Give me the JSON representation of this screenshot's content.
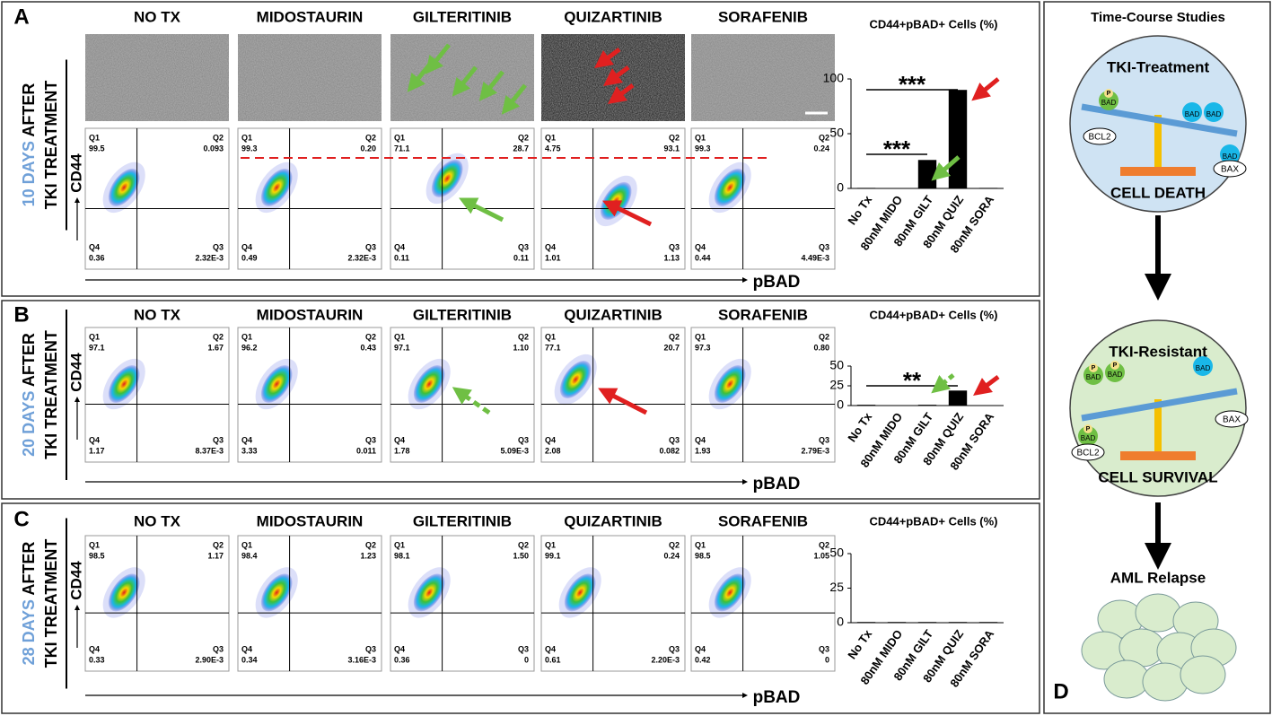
{
  "quadrant_names": [
    "Q1",
    "Q2",
    "Q4",
    "Q3"
  ],
  "panels": [
    {
      "letter": "A",
      "days": "10 DAYS",
      "after": "AFTER",
      "treatment": "TKI TREATMENT",
      "y_axis": "CD44",
      "x_axis": "pBAD",
      "drugs": [
        "NO TX",
        "MIDOSTAURIN",
        "GILTERITINIB",
        "QUIZARTINIB",
        "SORAFENIB"
      ],
      "plots": [
        [
          "99.5",
          "0.093",
          "0.36",
          "2.32E-3"
        ],
        [
          "99.3",
          "0.20",
          "0.49",
          "2.32E-3"
        ],
        [
          "71.1",
          "28.7",
          "0.11",
          "0.11"
        ],
        [
          "4.75",
          "93.1",
          "1.01",
          "1.13"
        ],
        [
          "99.3",
          "0.24",
          "0.44",
          "4.49E-3"
        ]
      ]
    },
    {
      "letter": "B",
      "days": "20 DAYS",
      "after": "AFTER",
      "treatment": "TKI TREATMENT",
      "y_axis": "CD44",
      "x_axis": "pBAD",
      "drugs": [
        "NO TX",
        "MIDOSTAURIN",
        "GILTERITINIB",
        "QUIZARTINIB",
        "SORAFENIB"
      ],
      "plots": [
        [
          "97.1",
          "1.67",
          "1.17",
          "8.37E-3"
        ],
        [
          "96.2",
          "0.43",
          "3.33",
          "0.011"
        ],
        [
          "97.1",
          "1.10",
          "1.78",
          "5.09E-3"
        ],
        [
          "77.1",
          "20.7",
          "2.08",
          "0.082"
        ],
        [
          "97.3",
          "0.80",
          "1.93",
          "2.79E-3"
        ]
      ]
    },
    {
      "letter": "C",
      "days": "28 DAYS",
      "after": "AFTER",
      "treatment": "TKI TREATMENT",
      "y_axis": "CD44",
      "x_axis": "pBAD",
      "drugs": [
        "NO TX",
        "MIDOSTAURIN",
        "GILTERITINIB",
        "QUIZARTINIB",
        "SORAFENIB"
      ],
      "plots": [
        [
          "98.5",
          "1.17",
          "0.33",
          "2.90E-3"
        ],
        [
          "98.4",
          "1.23",
          "0.34",
          "3.16E-3"
        ],
        [
          "98.1",
          "1.50",
          "0.36",
          "0"
        ],
        [
          "99.1",
          "0.24",
          "0.61",
          "2.20E-3"
        ],
        [
          "98.5",
          "1.05",
          "0.42",
          "0"
        ]
      ]
    }
  ],
  "chart_data": [
    {
      "type": "bar",
      "title": "CD44+pBAD+ Cells (%)",
      "categories": [
        "No Tx",
        "80nM MIDO",
        "80nM GILT",
        "80nM QUIZ",
        "80nM SORA"
      ],
      "values": [
        0.5,
        0.3,
        26,
        90,
        0.5
      ],
      "color": "#000000",
      "ylim": [
        0,
        100
      ],
      "yticks": [
        0,
        50,
        100
      ],
      "annotations": [
        "***",
        "***"
      ]
    },
    {
      "type": "bar",
      "title": "CD44+pBAD+ Cells (%)",
      "categories": [
        "No Tx",
        "80nM MIDO",
        "80nM GILT",
        "80nM QUIZ",
        "80nM SORA"
      ],
      "values": [
        1,
        0.5,
        1,
        19,
        0.5
      ],
      "color": "#000000",
      "ylim": [
        0,
        50
      ],
      "yticks": [
        0,
        25,
        50
      ],
      "annotations": [
        "**"
      ]
    },
    {
      "type": "bar",
      "title": "CD44+pBAD+ Cells (%)",
      "categories": [
        "No Tx",
        "80nM MIDO",
        "80nM GILT",
        "80nM QUIZ",
        "80nM SORA"
      ],
      "values": [
        0.5,
        0.5,
        0.5,
        0.5,
        0.5
      ],
      "color": "#000000",
      "ylim": [
        0,
        50
      ],
      "yticks": [
        0,
        25,
        50
      ],
      "annotations": []
    }
  ],
  "diagram": {
    "letter": "D",
    "title": "Time-Course Studies",
    "state1": "TKI-Treatment",
    "outcome1": "CELL DEATH",
    "state2": "TKI-Resistant",
    "outcome2": "CELL SURVIVAL",
    "relapse": "AML Relapse",
    "bad": "BAD",
    "phospho": "P",
    "bcl2": "BCL2",
    "bax": "BAX"
  }
}
